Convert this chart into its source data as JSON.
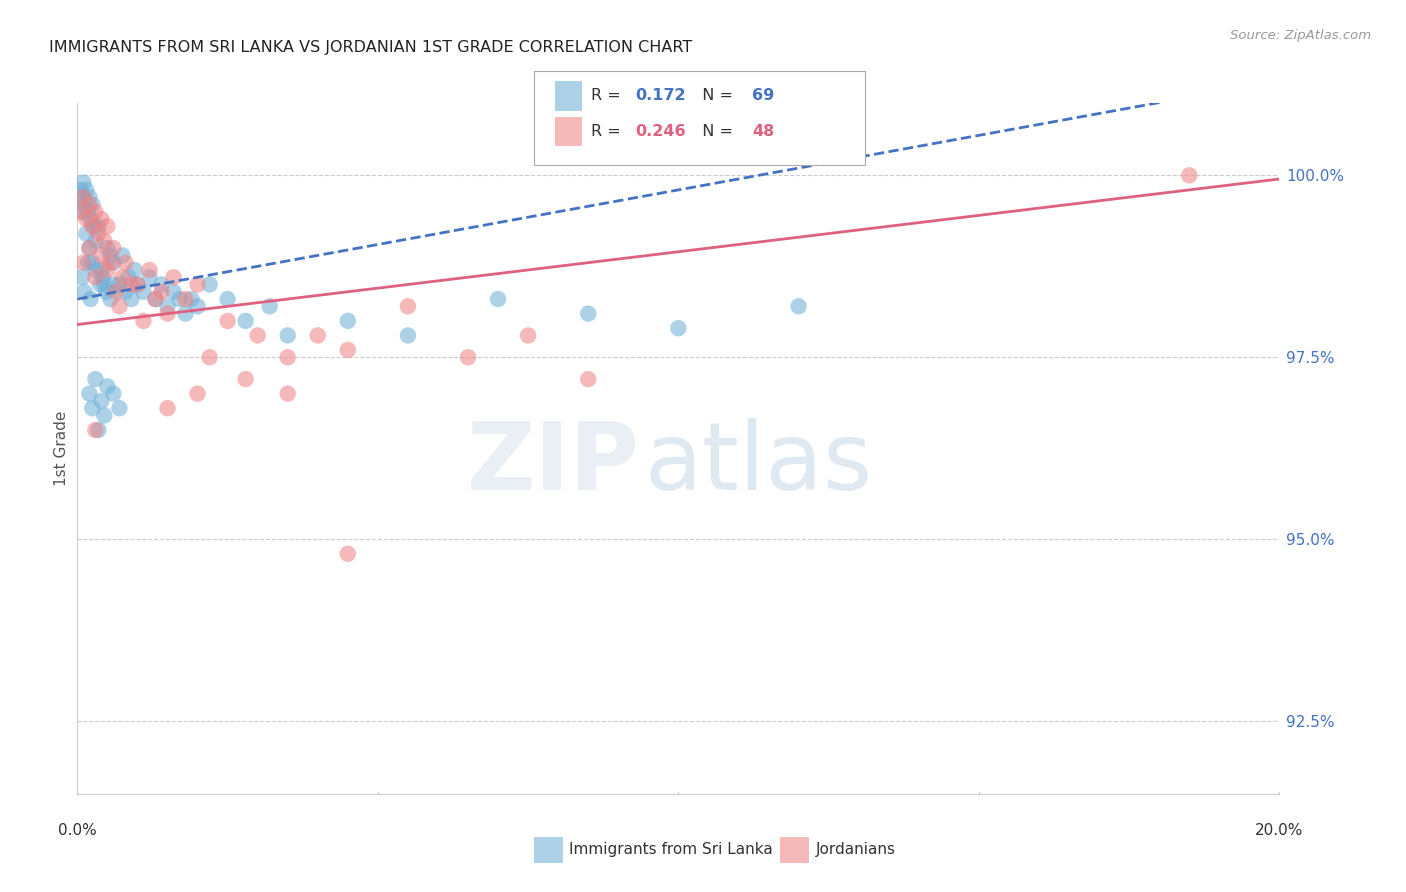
{
  "title": "IMMIGRANTS FROM SRI LANKA VS JORDANIAN 1ST GRADE CORRELATION CHART",
  "source_text": "Source: ZipAtlas.com",
  "ylabel": "1st Grade",
  "xmin": 0.0,
  "xmax": 20.0,
  "ymin": 91.5,
  "ymax": 101.0,
  "yticks": [
    92.5,
    95.0,
    97.5,
    100.0
  ],
  "ytick_labels": [
    "92.5%",
    "95.0%",
    "97.5%",
    "100.0%"
  ],
  "sri_lanka_color": "#6baed6",
  "jordanian_color": "#f08080",
  "sri_lanka_R": 0.172,
  "sri_lanka_N": 69,
  "jordanian_R": 0.246,
  "jordanian_N": 48,
  "watermark_zip": "ZIP",
  "watermark_atlas": "atlas",
  "background_color": "#ffffff",
  "grid_color": "#cccccc",
  "title_color": "#333333",
  "axis_color": "#4472c4",
  "trend_blue_color": "#4472c4",
  "trend_pink_color": "#e06080",
  "legend_R_label": "R = ",
  "legend_N_label": "  N = ",
  "bottom_label1": "Immigrants from Sri Lanka",
  "bottom_label2": "Jordanians"
}
